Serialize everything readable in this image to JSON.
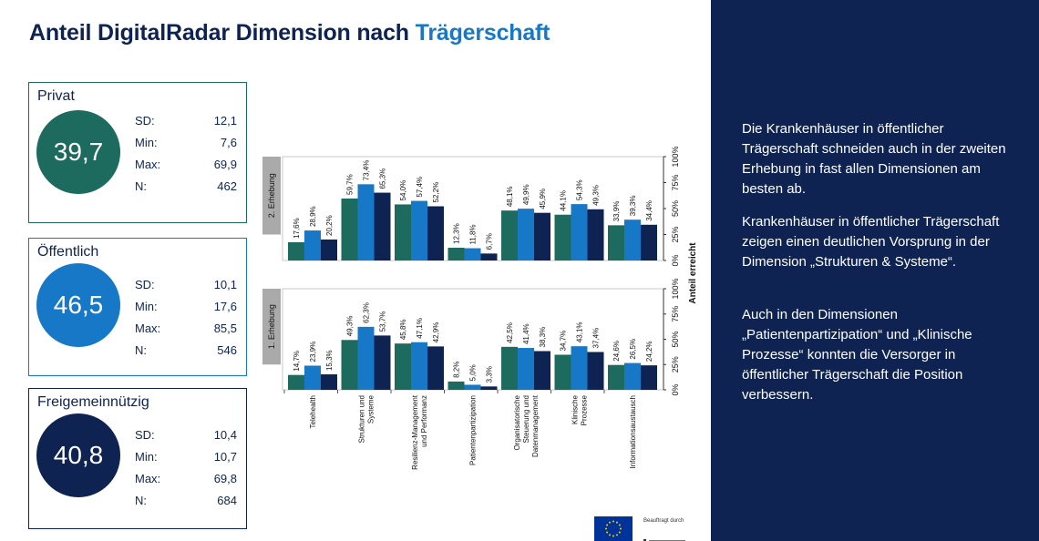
{
  "title": {
    "part1": "Anteil DigitalRadar Dimension nach",
    "part2": "Trägerschaft"
  },
  "cards": [
    {
      "label": "Privat",
      "value": "39,7",
      "color": "#1c6b5e",
      "stats": [
        {
          "k": "SD:",
          "v": "12,1"
        },
        {
          "k": "Min:",
          "v": "7,6"
        },
        {
          "k": "Max:",
          "v": "69,9"
        },
        {
          "k": "N:",
          "v": "462"
        }
      ]
    },
    {
      "label": "Öffentlich",
      "value": "46,5",
      "color": "#1778c8",
      "stats": [
        {
          "k": "SD:",
          "v": "10,1"
        },
        {
          "k": "Min:",
          "v": "17,6"
        },
        {
          "k": "Max:",
          "v": "85,5"
        },
        {
          "k": "N:",
          "v": "546"
        }
      ]
    },
    {
      "label": "Freigemeinnützig",
      "value": "40,8",
      "color": "#0e2352",
      "stats": [
        {
          "k": "SD:",
          "v": "10,4"
        },
        {
          "k": "Min:",
          "v": "10,7"
        },
        {
          "k": "Max:",
          "v": "69,8"
        },
        {
          "k": "N:",
          "v": "684"
        }
      ]
    }
  ],
  "chart_data": {
    "type": "bar",
    "ylabel": "Anteil erreicht",
    "ylim": [
      0,
      100
    ],
    "yticks": [
      "0%",
      "25%",
      "50%",
      "75%",
      "100%"
    ],
    "series_colors": [
      "#1c6b5e",
      "#1778c8",
      "#0e2352"
    ],
    "categories": [
      [
        "Telehealth"
      ],
      [
        "Strukturen und",
        "Systeme"
      ],
      [
        "Resilienz-Management",
        "und Performanz"
      ],
      [
        "Patientenpartizipation"
      ],
      [
        "Organisatorische",
        "Steuerung und",
        "Datenmanagement"
      ],
      [
        "Klinische",
        "Prozesse"
      ],
      [
        "Informationsaustausch"
      ]
    ],
    "panels": [
      {
        "name": "2. Erhebung",
        "series": [
          {
            "name": "Privat",
            "values": [
              17.6,
              59.7,
              54.0,
              12.3,
              48.1,
              44.1,
              33.9
            ],
            "labels": [
              "17,6%",
              "59,7%",
              "54,0%",
              "12,3%",
              "48,1%",
              "44,1%",
              "33,9%"
            ]
          },
          {
            "name": "Öffentlich",
            "values": [
              28.9,
              73.4,
              57.4,
              11.8,
              49.9,
              54.3,
              39.3
            ],
            "labels": [
              "28,9%",
              "73,4%",
              "57,4%",
              "11,8%",
              "49,9%",
              "54,3%",
              "39,3%"
            ]
          },
          {
            "name": "Freigemeinnützig",
            "values": [
              20.2,
              65.3,
              52.2,
              6.7,
              45.9,
              49.3,
              34.4
            ],
            "labels": [
              "20,2%",
              "65,3%",
              "52,2%",
              "6,7%",
              "45,9%",
              "49,3%",
              "34,4%"
            ]
          }
        ]
      },
      {
        "name": "1. Erhebung",
        "series": [
          {
            "name": "Privat",
            "values": [
              14.7,
              49.3,
              45.8,
              8.2,
              42.5,
              34.7,
              24.6
            ],
            "labels": [
              "14,7%",
              "49,3%",
              "45,8%",
              "8,2%",
              "42,5%",
              "34,7%",
              "24,6%"
            ]
          },
          {
            "name": "Öffentlich",
            "values": [
              23.9,
              62.3,
              47.1,
              5.0,
              41.4,
              43.1,
              26.5
            ],
            "labels": [
              "23,9%",
              "62,3%",
              "47,1%",
              "5,0%",
              "41,4%",
              "43,1%",
              "26,5%"
            ]
          },
          {
            "name": "Freigemeinnützig",
            "values": [
              15.3,
              53.7,
              42.9,
              3.3,
              38.3,
              37.4,
              24.2
            ],
            "labels": [
              "15,3%",
              "53,7%",
              "42,9%",
              "3,3%",
              "38,3%",
              "37,4%",
              "24,2%"
            ]
          }
        ]
      }
    ]
  },
  "panel_text": [
    "Die Krankenhäuser in öffentlicher Trägerschaft schneiden auch in der zweiten Erhebung in fast allen Dimensionen am besten ab.",
    "Krankenhäuser in öffentlicher Trägerschaft zeigen einen deutlichen Vorsprung in der Dimension „Strukturen & Systeme“.",
    "Auch in den Dimensionen „Patientenpartizipation“ und „Klinische Prozesse“ konnten die Versorger in öffentlicher Trägerschaft die Position verbessern."
  ],
  "footer": {
    "funded_by": "Beauftragt durch"
  }
}
